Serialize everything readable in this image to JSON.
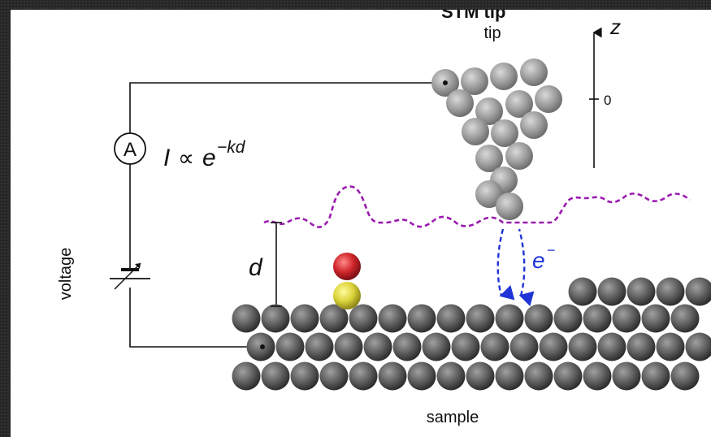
{
  "labels": {
    "partial_title": "STM tip",
    "tip": "tip",
    "z_axis": "z",
    "z_zero": "0",
    "ammeter": "A",
    "current_var": "I",
    "proportional": "∝",
    "exp_base": "e",
    "exponent": "−kd",
    "distance": "d",
    "electron": "e",
    "electron_charge": "−",
    "voltage": "voltage",
    "sample": "sample"
  },
  "colors": {
    "background_frame": "#262626",
    "panel": "#ffffff",
    "tip_atom": "#9a9a9a",
    "sample_atom": "#5a5a5a",
    "adsorbate_top": "#c0262b",
    "adsorbate_bottom": "#d9d23a",
    "wavefunction": "#9b1bb0",
    "tunneling_arrows": "#1f35d6",
    "wire": "#111111"
  }
}
